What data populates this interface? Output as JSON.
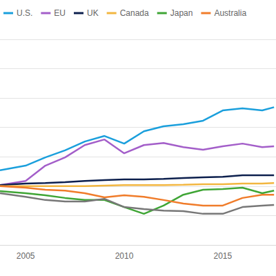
{
  "chart_data": {
    "type": "line",
    "x": [
      2003.7,
      2005,
      2006,
      2007,
      2008,
      2009,
      2010,
      2011,
      2012,
      2013,
      2014,
      2015,
      2016,
      2017,
      2017.6
    ],
    "series": [
      {
        "name": "U.S.",
        "color": "#1a9fdc",
        "values": [
          2.54,
          2.7,
          2.98,
          3.22,
          3.52,
          3.71,
          3.45,
          3.87,
          4.04,
          4.11,
          4.23,
          4.58,
          4.65,
          4.58,
          4.69
        ]
      },
      {
        "name": "EU",
        "color": "#a35ec9",
        "values": [
          2.04,
          2.18,
          2.7,
          2.98,
          3.4,
          3.59,
          3.12,
          3.4,
          3.47,
          3.33,
          3.24,
          3.36,
          3.45,
          3.33,
          3.36
        ]
      },
      {
        "name": "UK",
        "color": "#0c1f4d",
        "values": [
          2.04,
          2.09,
          2.11,
          2.14,
          2.18,
          2.21,
          2.23,
          2.23,
          2.25,
          2.28,
          2.3,
          2.32,
          2.37,
          2.37,
          2.37
        ]
      },
      {
        "name": "Canada",
        "color": "#f2b640",
        "values": [
          2.0,
          2.0,
          2.0,
          2.0,
          2.0,
          2.02,
          2.04,
          2.04,
          2.04,
          2.05,
          2.07,
          2.07,
          2.09,
          2.09,
          2.11
        ]
      },
      {
        "name": "Japan",
        "color": "#3fa535",
        "values": [
          1.83,
          1.76,
          1.69,
          1.6,
          1.53,
          1.53,
          1.29,
          1.06,
          1.34,
          1.71,
          1.88,
          1.9,
          1.95,
          1.76,
          1.85
        ]
      },
      {
        "name": "Australia",
        "color": "#f07c2a",
        "values": [
          2.0,
          1.95,
          1.88,
          1.85,
          1.76,
          1.62,
          1.69,
          1.64,
          1.53,
          1.41,
          1.34,
          1.34,
          1.6,
          1.71,
          1.71
        ]
      },
      {
        "color": "#777777",
        "values": [
          1.76,
          1.64,
          1.53,
          1.48,
          1.48,
          1.57,
          1.29,
          1.22,
          1.17,
          1.15,
          1.06,
          1.06,
          1.29,
          1.34,
          1.36
        ]
      }
    ],
    "xlim": [
      2003.7,
      2017.7
    ],
    "xticks": [
      2005,
      2010,
      2015
    ],
    "ylim": [
      0,
      7
    ],
    "yticks": [
      0,
      1,
      2,
      3,
      4,
      5,
      6,
      7
    ],
    "grid": true,
    "legend": "top-left",
    "tick_labels": "x"
  }
}
